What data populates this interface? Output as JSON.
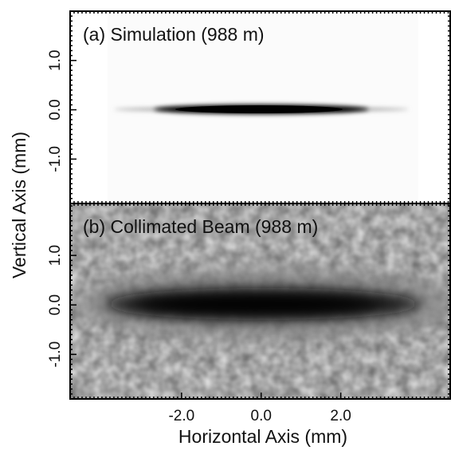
{
  "axis_labels": {
    "x": "Horizontal Axis (mm)",
    "y": "Vertical Axis (mm)"
  },
  "chart_data": [
    {
      "type": "image",
      "title": "(a) Simulation (988 m)",
      "xlim": [
        -4.8,
        4.75
      ],
      "ylim": [
        -1.9,
        2.0
      ],
      "yticks": [
        {
          "value": -1,
          "label": "-1.0"
        },
        {
          "value": 0,
          "label": "0.0"
        },
        {
          "value": 1,
          "label": "1.0"
        }
      ]
    },
    {
      "type": "image",
      "title": "(b) Collimated Beam (988 m)",
      "xlim": [
        -4.8,
        4.75
      ],
      "ylim": [
        -1.9,
        2.05
      ],
      "xticks": [
        {
          "value": -2,
          "label": "-2.0"
        },
        {
          "value": 0,
          "label": "0.0"
        },
        {
          "value": 2,
          "label": "2.0"
        }
      ],
      "yticks": [
        {
          "value": -1,
          "label": "-1.0"
        },
        {
          "value": 0,
          "label": "0.0"
        },
        {
          "value": 1,
          "label": "1.0"
        }
      ]
    }
  ]
}
